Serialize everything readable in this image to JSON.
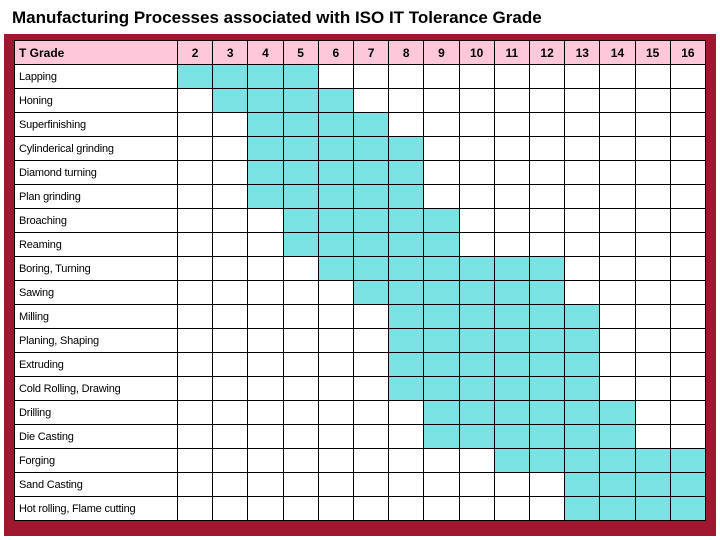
{
  "title": "Manufacturing Processes associated with ISO IT Tolerance Grade",
  "bg_color": "#a01830",
  "header_bg": "#ffc8da",
  "fill_color": "#7ae2e2",
  "grade_label": "T Grade",
  "grades": [
    "2",
    "3",
    "4",
    "5",
    "6",
    "7",
    "8",
    "9",
    "10",
    "11",
    "12",
    "13",
    "14",
    "15",
    "16"
  ],
  "grade_values": [
    2,
    3,
    4,
    5,
    6,
    7,
    8,
    9,
    10,
    11,
    12,
    13,
    14,
    15,
    16
  ],
  "processes": [
    {
      "name": "Lapping",
      "from": 2,
      "to": 5
    },
    {
      "name": "Honing",
      "from": 3,
      "to": 6
    },
    {
      "name": "Superfinishing",
      "from": 4,
      "to": 7
    },
    {
      "name": "Cylinderical grinding",
      "from": 4,
      "to": 8
    },
    {
      "name": "Diamond turning",
      "from": 4,
      "to": 8
    },
    {
      "name": "Plan grinding",
      "from": 4,
      "to": 8
    },
    {
      "name": "Broaching",
      "from": 5,
      "to": 9
    },
    {
      "name": "Reaming",
      "from": 5,
      "to": 9
    },
    {
      "name": "Boring, Turning",
      "from": 6,
      "to": 12
    },
    {
      "name": "Sawing",
      "from": 7,
      "to": 12
    },
    {
      "name": "Milling",
      "from": 8,
      "to": 13
    },
    {
      "name": "Planing, Shaping",
      "from": 8,
      "to": 13
    },
    {
      "name": "Extruding",
      "from": 8,
      "to": 13
    },
    {
      "name": "Cold Rolling, Drawing",
      "from": 8,
      "to": 13
    },
    {
      "name": "Drilling",
      "from": 9,
      "to": 14
    },
    {
      "name": "Die Casting",
      "from": 9,
      "to": 14
    },
    {
      "name": "Forging",
      "from": 11,
      "to": 16
    },
    {
      "name": "Sand Casting",
      "from": 13,
      "to": 16
    },
    {
      "name": "Hot rolling, Flame cutting",
      "from": 13,
      "to": 16
    }
  ]
}
